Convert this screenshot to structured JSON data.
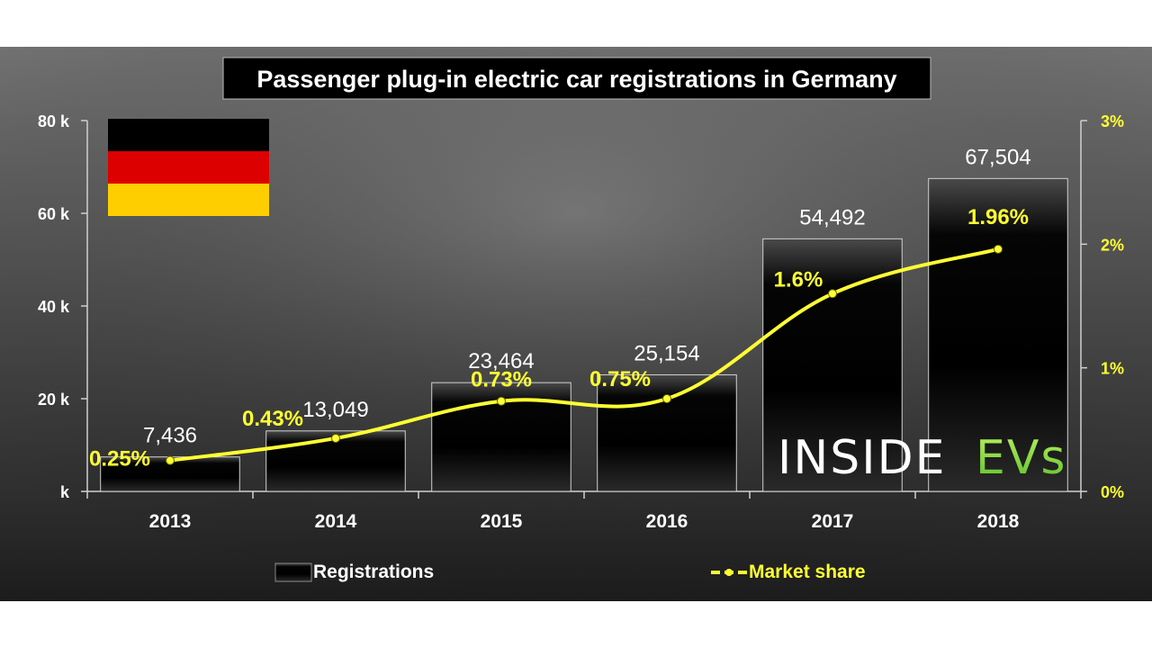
{
  "chart_data": {
    "type": "bar",
    "title": "Passenger plug-in electric car registrations in Germany",
    "categories": [
      "2013",
      "2014",
      "2015",
      "2016",
      "2017",
      "2018"
    ],
    "series": [
      {
        "name": "Registrations",
        "type": "bar",
        "axis": "left",
        "values": [
          7436,
          13049,
          23464,
          25154,
          54492,
          67504
        ],
        "labels": [
          "7,436",
          "13,049",
          "23,464",
          "25,154",
          "54,492",
          "67,504"
        ]
      },
      {
        "name": "Market share",
        "type": "line",
        "axis": "right",
        "values": [
          0.25,
          0.43,
          0.73,
          0.75,
          1.6,
          1.96
        ],
        "labels": [
          "0.25%",
          "0.43%",
          "0.73%",
          "0.75%",
          "1.6%",
          "1.96%"
        ]
      }
    ],
    "y_left": {
      "min": 0,
      "max": 80000,
      "ticks": [
        0,
        20000,
        40000,
        60000,
        80000
      ],
      "tick_labels": [
        "k",
        "20 k",
        "40 k",
        "60 k",
        "80 k"
      ]
    },
    "y_right": {
      "min": 0,
      "max": 3,
      "ticks": [
        0,
        1,
        2,
        3
      ],
      "tick_labels": [
        "0%",
        "1%",
        "2%",
        "3%"
      ]
    },
    "legend": {
      "position": "bottom",
      "entries": [
        "Registrations",
        "Market share"
      ]
    },
    "colors": {
      "bar": "#111111",
      "line": "#ffff33",
      "background_top": "#6a6a6a",
      "background_bottom": "#1e1e1e"
    }
  },
  "logo": {
    "text_inside": "INSIDE",
    "text_evs": "EVs"
  },
  "flag": {
    "colors": [
      "#000000",
      "#dd0000",
      "#ffce00"
    ]
  }
}
